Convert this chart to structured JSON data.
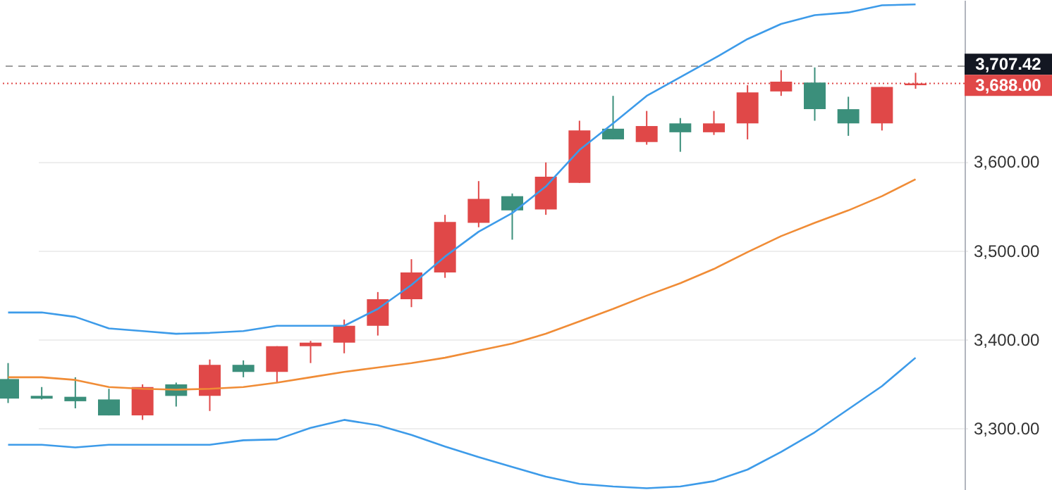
{
  "chart_data": {
    "type": "candlestick",
    "categories": [
      null,
      null,
      null,
      null,
      null,
      null,
      null,
      null,
      null,
      null,
      null,
      null,
      null,
      null,
      null,
      null,
      null,
      null,
      null,
      null,
      null,
      null,
      null,
      null,
      null,
      null,
      null,
      null
    ],
    "ohlc": [
      [
        3355,
        3373,
        3328,
        3333
      ],
      [
        3336,
        3346,
        3332,
        3333
      ],
      [
        3335,
        3357,
        3322,
        3330
      ],
      [
        3332,
        3344,
        3314,
        3314
      ],
      [
        3314,
        3349,
        3309,
        3346
      ],
      [
        3349,
        3351,
        3324,
        3336
      ],
      [
        3336,
        3377,
        3319,
        3371
      ],
      [
        3371,
        3376,
        3357,
        3363
      ],
      [
        3363,
        3392,
        3351,
        3392
      ],
      [
        3392,
        3398,
        3373,
        3396
      ],
      [
        3396,
        3422,
        3384,
        3415
      ],
      [
        3415,
        3453,
        3404,
        3445
      ],
      [
        3445,
        3490,
        3436,
        3475
      ],
      [
        3475,
        3540,
        3469,
        3532
      ],
      [
        3531,
        3578,
        3526,
        3558
      ],
      [
        3561,
        3564,
        3512,
        3545
      ],
      [
        3546,
        3599,
        3540,
        3583
      ],
      [
        3576,
        3646,
        3576,
        3635
      ],
      [
        3637,
        3674,
        3625,
        3625
      ],
      [
        3622,
        3657,
        3619,
        3640
      ],
      [
        3643,
        3649,
        3611,
        3633
      ],
      [
        3633,
        3657,
        3630,
        3643
      ],
      [
        3643,
        3686,
        3625,
        3678
      ],
      [
        3679,
        3703,
        3674,
        3690
      ],
      [
        3689,
        3706,
        3646,
        3659
      ],
      [
        3659,
        3673,
        3629,
        3643
      ],
      [
        3643,
        3684,
        3635,
        3684
      ],
      [
        3686,
        3700,
        3682,
        3688
      ]
    ],
    "colors": [
      "#3b8f7b",
      "#3b8f7b",
      "#3b8f7b",
      "#3b8f7b",
      "#e04848",
      "#3b8f7b",
      "#e04848",
      "#3b8f7b",
      "#e04848",
      "#e04848",
      "#e04848",
      "#e04848",
      "#e04848",
      "#e04848",
      "#e04848",
      "#3b8f7b",
      "#e04848",
      "#e04848",
      "#3b8f7b",
      "#e04848",
      "#3b8f7b",
      "#e04848",
      "#e04848",
      "#e04848",
      "#3b8f7b",
      "#3b8f7b",
      "#e04848",
      "#e04848"
    ],
    "series": [
      {
        "type": "line",
        "color": "#3d9be9",
        "values": [
          3430,
          3430,
          3425,
          3412,
          3409,
          3406,
          3407,
          3409,
          3415,
          3415,
          3415,
          3434,
          3461,
          3493,
          3521,
          3542,
          3572,
          3613,
          3643,
          3674,
          3695,
          3716,
          3738,
          3755,
          3765,
          3768,
          3776,
          3777
        ]
      },
      {
        "type": "line",
        "color": "#f08c36",
        "values": [
          3357,
          3357,
          3354,
          3346,
          3344,
          3343,
          3344,
          3346,
          3351,
          3357,
          3363,
          3368,
          3373,
          3379,
          3387,
          3395,
          3406,
          3420,
          3434,
          3449,
          3463,
          3479,
          3498,
          3516,
          3531,
          3545,
          3561,
          3580
        ]
      },
      {
        "type": "line",
        "color": "#3d9be9",
        "values": [
          3281,
          3281,
          3278,
          3281,
          3281,
          3281,
          3281,
          3286,
          3287,
          3300,
          3309,
          3303,
          3292,
          3279,
          3267,
          3256,
          3245,
          3237,
          3234,
          3232,
          3234,
          3240,
          3253,
          3273,
          3295,
          3321,
          3347,
          3379
        ]
      }
    ],
    "ylim": [
      3230,
      3782
    ],
    "yticks": [
      {
        "value": 3300,
        "label": "3,300.00"
      },
      {
        "value": 3400,
        "label": "3,400.00"
      },
      {
        "value": 3500,
        "label": "3,500.00"
      },
      {
        "value": 3600,
        "label": "3,600.00"
      }
    ],
    "ref_lines": [
      {
        "axis": "y",
        "value": 3707.42,
        "label": "3,707.42",
        "color": "#9e9e9e",
        "line_style": "dashed"
      },
      {
        "axis": "y",
        "value": 3688,
        "label": "3,688.00",
        "color": "#e04848",
        "line_style": "dotted"
      }
    ],
    "grid": "y",
    "line_style": "solid",
    "marker": "none"
  }
}
